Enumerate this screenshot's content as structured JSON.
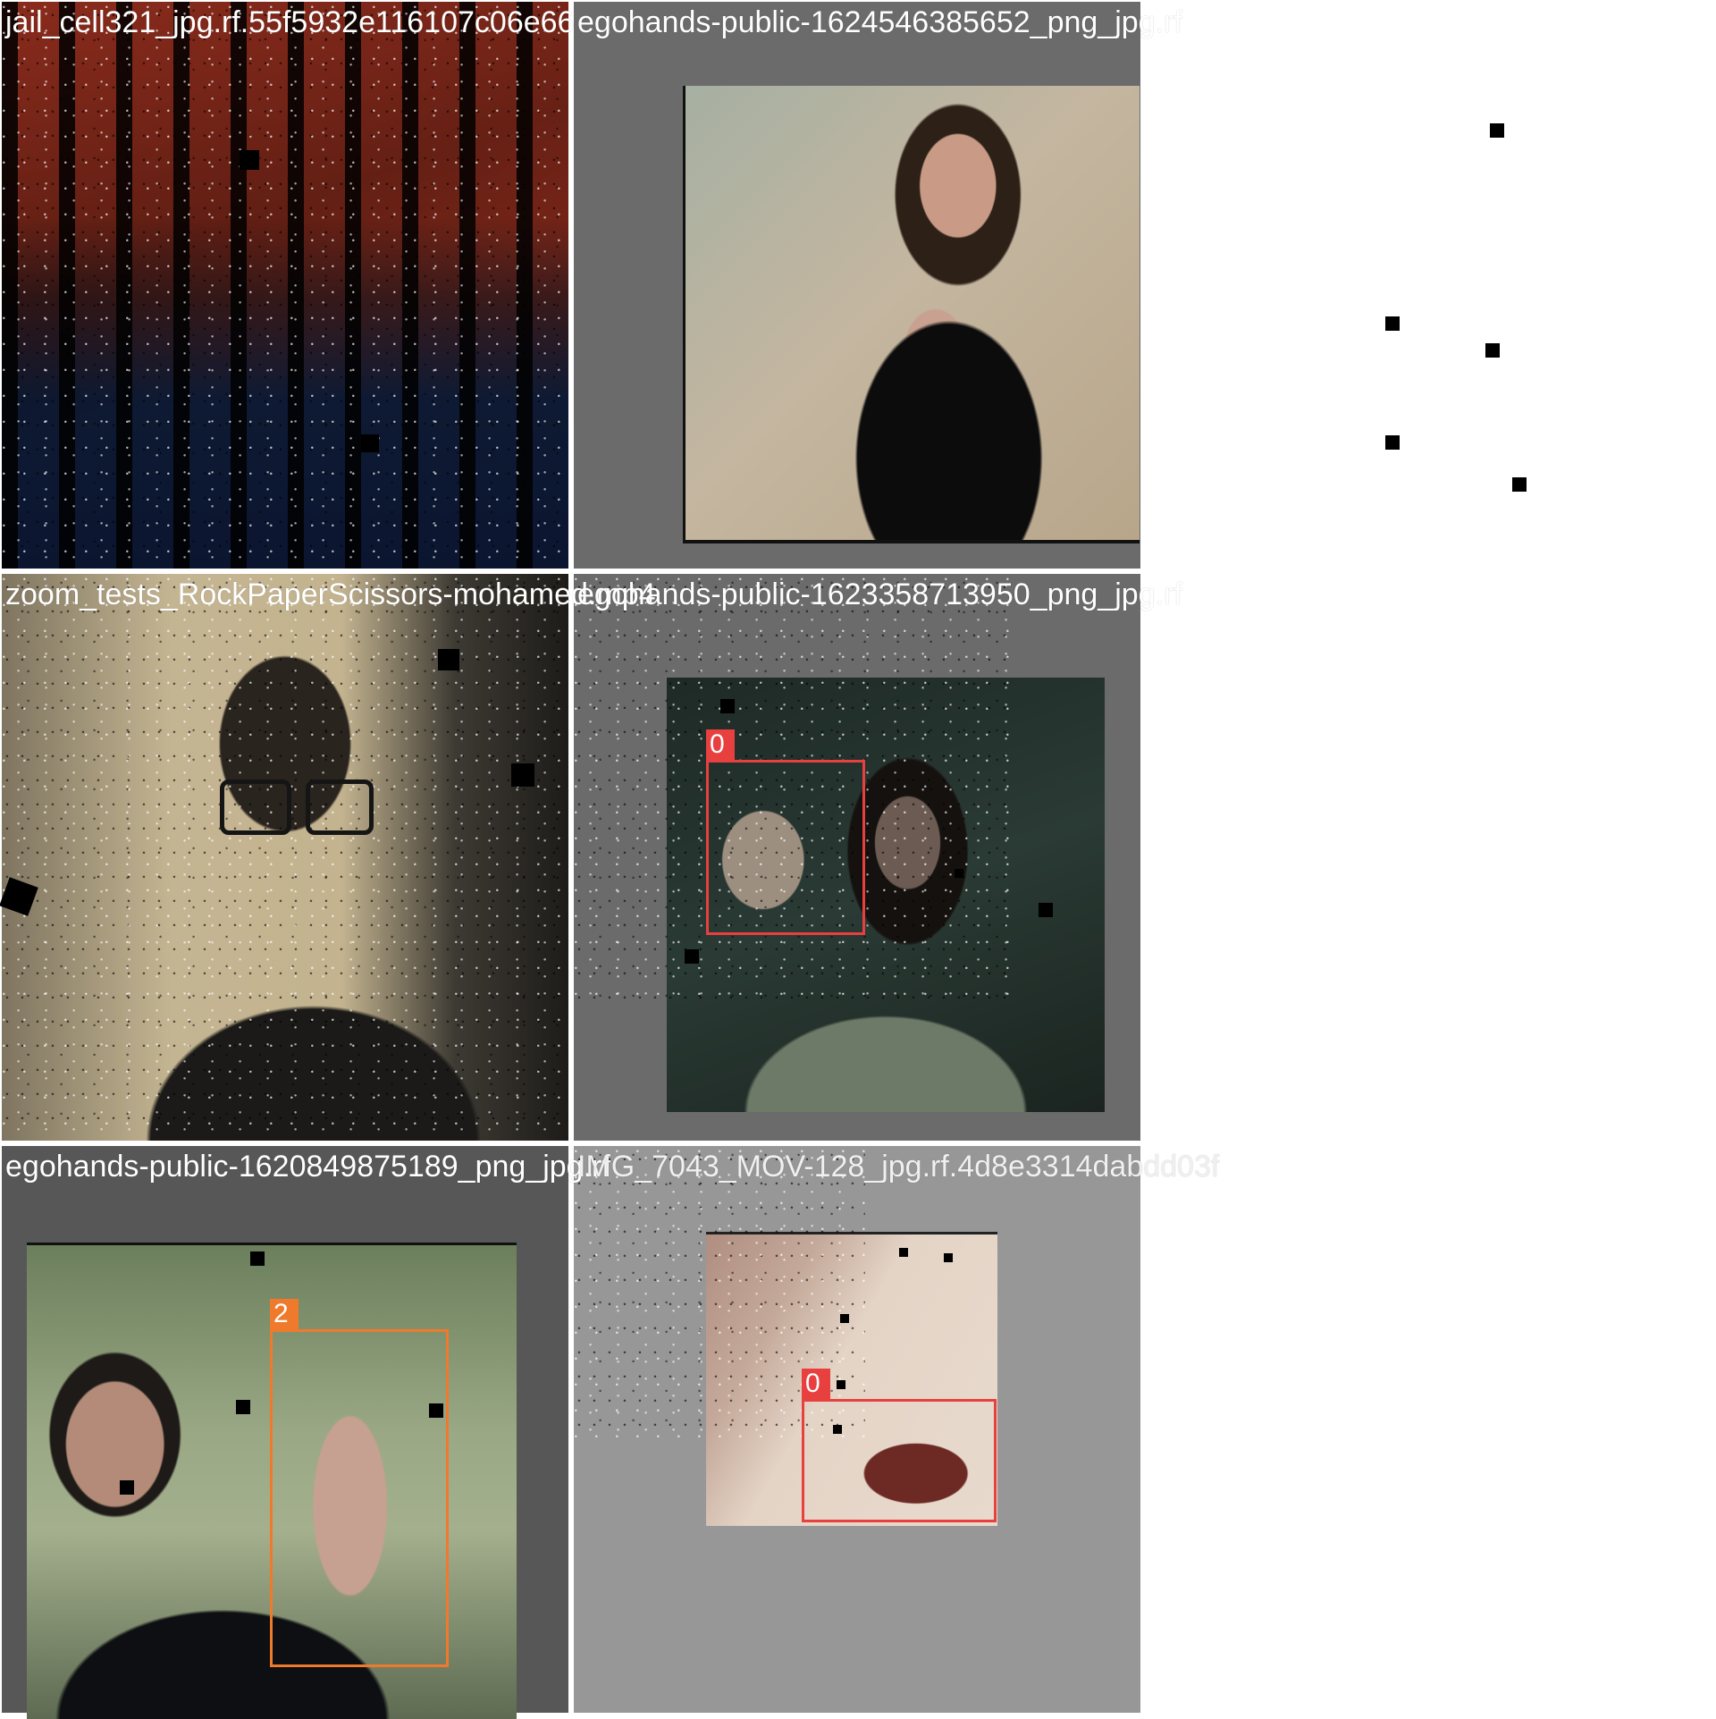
{
  "tiles": [
    {
      "caption": "jail_cell321_jpg.rf.55f5932e116107c06e66"
    },
    {
      "caption": "egohands-public-1624546385652_png_jpg.rf"
    },
    {
      "caption": "zoom_tests_RockPaperScissors-mohamed.mp4"
    },
    {
      "caption": "egohands-public-1623358713950_png_jpg.rf",
      "boxes": [
        {
          "label": "0",
          "color": "#e8403f"
        }
      ]
    },
    {
      "caption": "egohands-public-1620849875189_png_jpg.rf",
      "boxes": [
        {
          "label": "2",
          "color": "#f07a2c"
        }
      ]
    },
    {
      "caption": "IMG_7043_MOV-128_jpg.rf.4d8e3314dabdd03f",
      "boxes": [
        {
          "label": "0",
          "color": "#e8403f"
        }
      ]
    }
  ],
  "colors": {
    "gray_dark": "#6b6b6b",
    "gray_mid": "#575757",
    "gray_light": "#979797",
    "box_red": "#e8403f",
    "box_orange": "#f07a2c"
  }
}
